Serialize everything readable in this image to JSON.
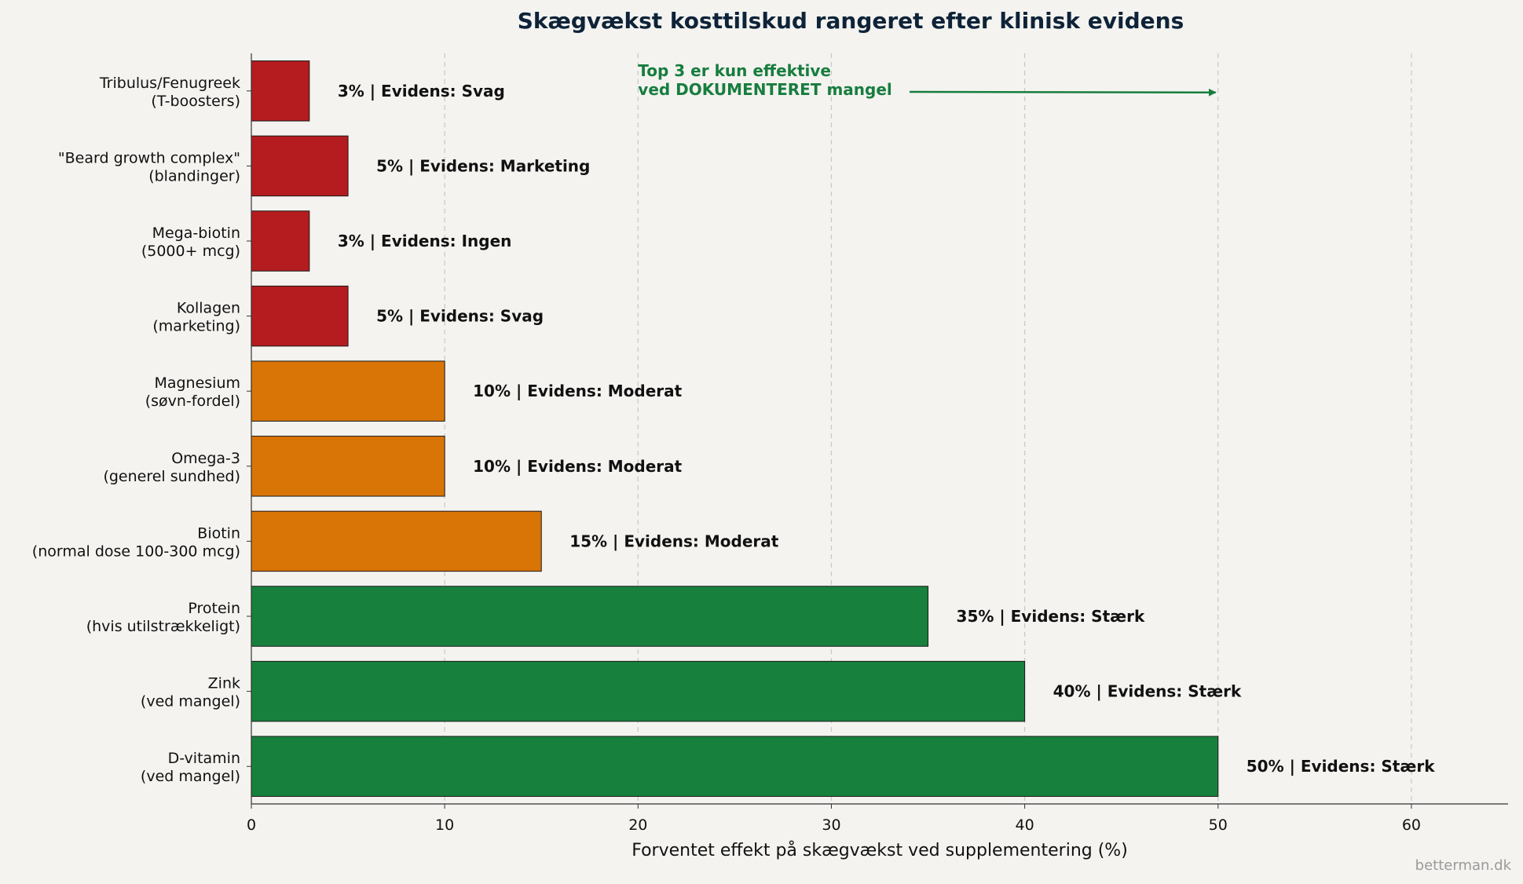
{
  "chart_data": {
    "type": "bar",
    "orientation": "horizontal",
    "title": "Skægvækst kosttilskud rangeret efter klinisk evidens",
    "xlabel": "Forventet effekt på skægvækst ved supplementering (%)",
    "ylabel": "",
    "xlim": [
      0,
      65
    ],
    "xticks": [
      0,
      10,
      20,
      30,
      40,
      50,
      60
    ],
    "grid": "vertical-dashed",
    "colors": {
      "weak": "#b51c1f",
      "moderate": "#d97406",
      "strong": "#17803d"
    },
    "categories": [
      [
        "D-vitamin",
        "(ved mangel)"
      ],
      [
        "Zink",
        "(ved mangel)"
      ],
      [
        "Protein",
        "(hvis utilstrækkeligt)"
      ],
      [
        "Biotin",
        "(normal dose 100-300 mcg)"
      ],
      [
        "Omega-3",
        "(generel sundhed)"
      ],
      [
        "Magnesium",
        "(søvn-fordel)"
      ],
      [
        "Kollagen",
        "(marketing)"
      ],
      [
        "Mega-biotin",
        "(5000+ mcg)"
      ],
      [
        "\"Beard growth complex\"",
        "(blandinger)"
      ],
      [
        "Tribulus/Fenugreek",
        "(T-boosters)"
      ]
    ],
    "values": [
      50,
      40,
      35,
      15,
      10,
      10,
      5,
      3,
      5,
      3
    ],
    "evidence": [
      "strong",
      "strong",
      "strong",
      "moderate",
      "moderate",
      "moderate",
      "weak",
      "weak",
      "weak",
      "weak"
    ],
    "data_labels": [
      "50%  |  Evidens: Stærk",
      "40%  |  Evidens: Stærk",
      "35%  |  Evidens: Stærk",
      "15%  |  Evidens: Moderat",
      "10%  |  Evidens: Moderat",
      "10%  |  Evidens: Moderat",
      "5%  |  Evidens: Svag",
      "3%  |  Evidens: Ingen",
      "5%  |  Evidens: Marketing",
      "3%  |  Evidens: Svag"
    ],
    "annotation": {
      "lines": [
        "Top 3 er kun effektive",
        "ved DOKUMENTERET mangel"
      ],
      "target_value": 50
    }
  },
  "watermark": "betterman.dk"
}
